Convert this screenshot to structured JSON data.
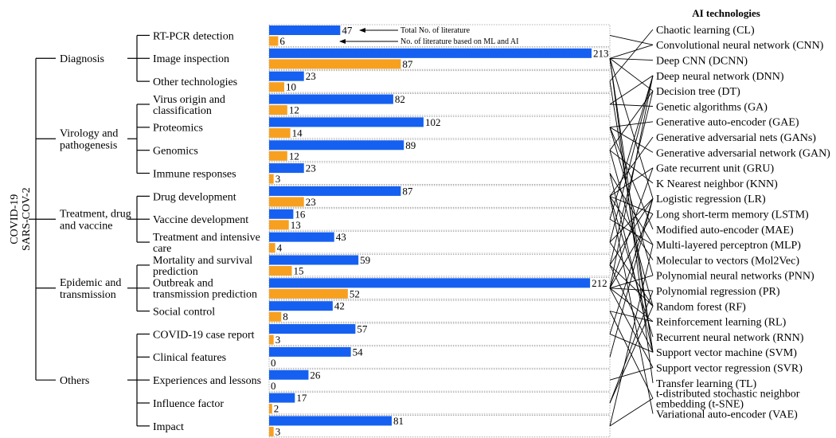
{
  "root_label": [
    "COVID-19",
    "SARS-COV-2"
  ],
  "colors": {
    "total": "#1560f0",
    "ml_ai": "#f7a020",
    "stroke": "#000000",
    "row_border": "#9a9a9a"
  },
  "annotations": {
    "total": "Total No. of literature",
    "ml_ai": "No. of literature based on ML and AI"
  },
  "ai_header": "AI technologies",
  "chart_data": {
    "type": "bar",
    "orientation": "horizontal",
    "xlim": [
      0,
      213
    ],
    "grid": false,
    "legend": "none (arrows annotate the first row)",
    "groups": [
      {
        "name": "Diagnosis",
        "categories": [
          0,
          1,
          2
        ]
      },
      {
        "name": [
          "Virology and",
          "pathogenesis"
        ],
        "categories": [
          3,
          4,
          5,
          6
        ]
      },
      {
        "name": [
          "Treatment, drug",
          "and vaccine"
        ],
        "categories": [
          7,
          8,
          9
        ]
      },
      {
        "name": [
          "Epidemic and",
          "transmission"
        ],
        "categories": [
          10,
          11,
          12
        ]
      },
      {
        "name": "Others",
        "categories": [
          13,
          14,
          15,
          16,
          17
        ]
      }
    ],
    "categories": [
      [
        "RT-PCR detection"
      ],
      [
        "Image inspection"
      ],
      [
        "Other technologies"
      ],
      [
        "Virus origin and",
        "classification"
      ],
      [
        "Proteomics"
      ],
      [
        "Genomics"
      ],
      [
        "Immune responses"
      ],
      [
        "Drug development"
      ],
      [
        "Vaccine development"
      ],
      [
        "Treatment and intensive",
        "care"
      ],
      [
        "Mortality and survival",
        "prediction"
      ],
      [
        "Outbreak and",
        "transmission prediction"
      ],
      [
        "Social control"
      ],
      [
        "COVID-19 case report"
      ],
      [
        "Clinical features"
      ],
      [
        "Experiences and lessons"
      ],
      [
        "Influence factor"
      ],
      [
        "Impact"
      ]
    ],
    "series": [
      {
        "values": [
          47,
          213,
          23,
          82,
          102,
          89,
          23,
          87,
          16,
          43,
          59,
          212,
          42,
          57,
          54,
          26,
          17,
          81
        ]
      },
      {
        "values": [
          6,
          87,
          10,
          12,
          14,
          12,
          3,
          23,
          13,
          4,
          15,
          52,
          8,
          3,
          0,
          0,
          2,
          3
        ]
      }
    ],
    "ai_technologies": [
      [
        "Chaotic learning (CL)"
      ],
      [
        "Convolutional neural network (CNN)"
      ],
      [
        "Deep CNN (DCNN)"
      ],
      [
        "Deep neural network (DNN)"
      ],
      [
        "Decision tree (DT)"
      ],
      [
        "Genetic algorithms (GA)"
      ],
      [
        "Generative auto-encoder (GAE)"
      ],
      [
        "Generative adversarial nets (GANs)"
      ],
      [
        "Generative adversarial network (GAN)"
      ],
      [
        "Gate recurrent unit (GRU)"
      ],
      [
        "K Nearest neighbor (KNN)"
      ],
      [
        "Logistic regression (LR)"
      ],
      [
        "Long short-term memory (LSTM)"
      ],
      [
        "Modified auto-encoder (MAE)"
      ],
      [
        "Multi-layered perceptron (MLP)"
      ],
      [
        "Molecular to vectors (Mol2Vec)"
      ],
      [
        "Polynomial neural networks (PNN)"
      ],
      [
        "Polynomial regression (PR)"
      ],
      [
        "Random forest (RF)"
      ],
      [
        "Reinforcement learning (RL)"
      ],
      [
        "Recurrent neural network (RNN)"
      ],
      [
        "Support vector machine (SVM)"
      ],
      [
        "Support vector regression (SVR)"
      ],
      [
        "Transfer learning (TL)"
      ],
      [
        "t-distributed stochastic neighbor",
        "embedding (t-SNE)"
      ],
      [
        "Variational auto-encoder (VAE)"
      ]
    ],
    "connections": [
      [
        0,
        1
      ],
      [
        1,
        1
      ],
      [
        1,
        2
      ],
      [
        1,
        4
      ],
      [
        1,
        11
      ],
      [
        1,
        21
      ],
      [
        1,
        23
      ],
      [
        2,
        0
      ],
      [
        2,
        21
      ],
      [
        3,
        3
      ],
      [
        3,
        5
      ],
      [
        4,
        6
      ],
      [
        4,
        8
      ],
      [
        4,
        13
      ],
      [
        4,
        16
      ],
      [
        5,
        4
      ],
      [
        5,
        10
      ],
      [
        5,
        18
      ],
      [
        6,
        14
      ],
      [
        6,
        21
      ],
      [
        7,
        7
      ],
      [
        7,
        9
      ],
      [
        7,
        12
      ],
      [
        7,
        15
      ],
      [
        7,
        20
      ],
      [
        7,
        25
      ],
      [
        8,
        3
      ],
      [
        8,
        14
      ],
      [
        9,
        3
      ],
      [
        9,
        11
      ],
      [
        9,
        18
      ],
      [
        10,
        4
      ],
      [
        10,
        11
      ],
      [
        10,
        18
      ],
      [
        10,
        21
      ],
      [
        11,
        3
      ],
      [
        11,
        9
      ],
      [
        11,
        12
      ],
      [
        11,
        16
      ],
      [
        11,
        17
      ],
      [
        11,
        19
      ],
      [
        11,
        22
      ],
      [
        12,
        19
      ],
      [
        12,
        24
      ],
      [
        13,
        11
      ],
      [
        13,
        21
      ],
      [
        14,
        11
      ],
      [
        15,
        22
      ],
      [
        16,
        17
      ],
      [
        16,
        18
      ],
      [
        17,
        24
      ],
      [
        17,
        14
      ]
    ]
  }
}
